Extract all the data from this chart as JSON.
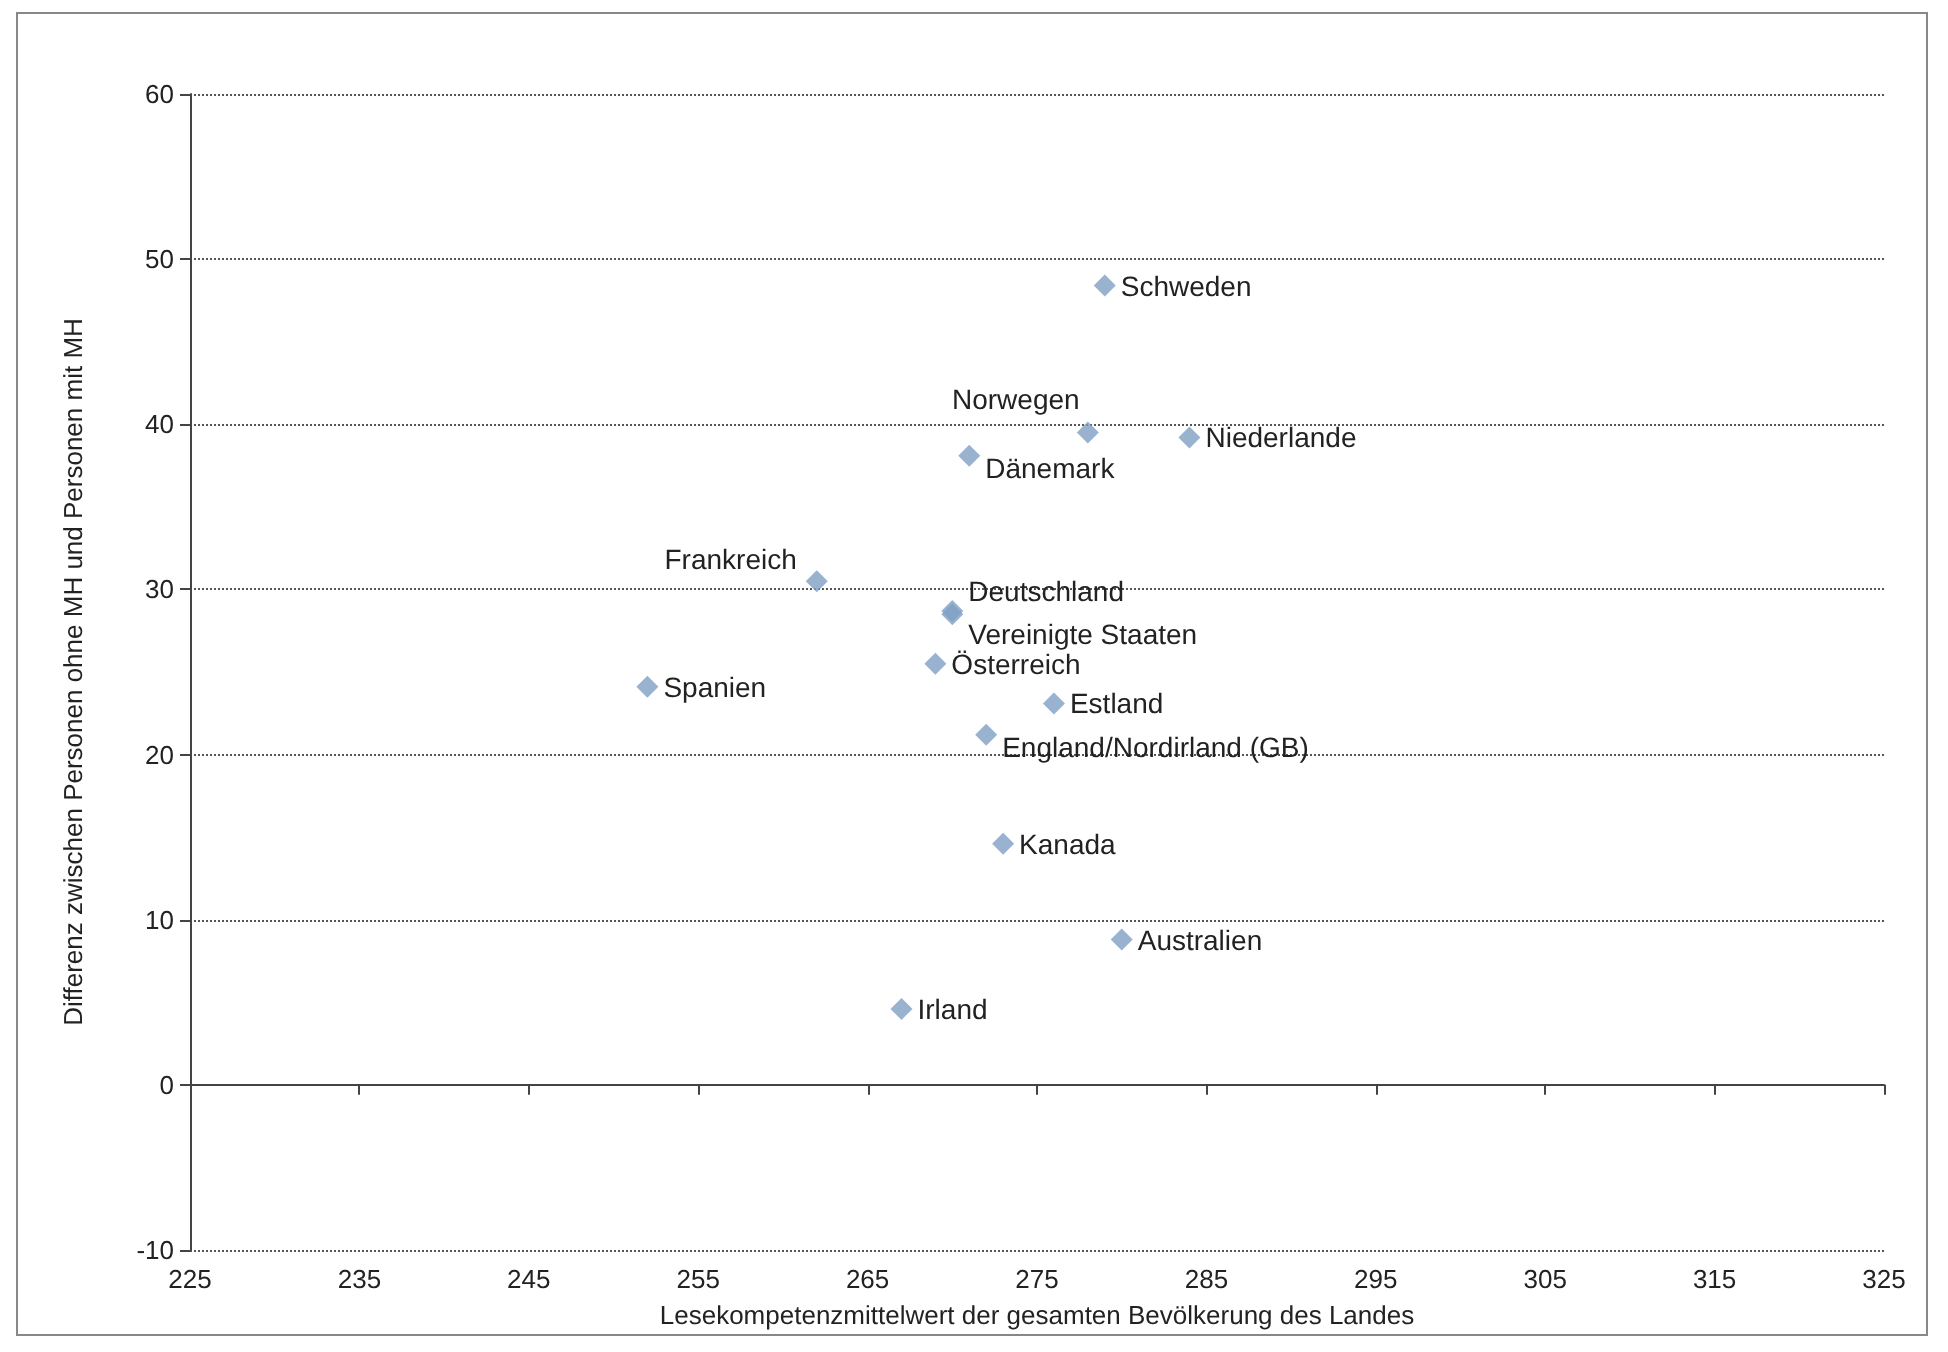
{
  "chart_data": {
    "type": "scatter",
    "xlabel": "Lesekompetenzmittelwert der gesamten Bevölkerung des Landes",
    "ylabel": "Differenz zwischen Personen ohne MH und Personen mit MH",
    "x": [
      279,
      278,
      284,
      271,
      262,
      270,
      270,
      269,
      252,
      276,
      272,
      273,
      280,
      267
    ],
    "series": [
      {
        "color": "#7f9fc3",
        "values": [
          48.4,
          39.5,
          39.2,
          38.1,
          30.5,
          28.7,
          28.5,
          25.5,
          24.1,
          23.1,
          21.2,
          14.6,
          8.8,
          4.6
        ]
      }
    ],
    "annotations": [
      {
        "text": "Schweden",
        "x": 279,
        "y": 48.4
      },
      {
        "text": "Norwegen",
        "x": 278,
        "y": 39.5
      },
      {
        "text": "Niederlande",
        "x": 284,
        "y": 39.2
      },
      {
        "text": "Dänemark",
        "x": 271,
        "y": 38.1
      },
      {
        "text": "Frankreich",
        "x": 262,
        "y": 30.5
      },
      {
        "text": "Deutschland",
        "x": 270,
        "y": 28.7
      },
      {
        "text": "Vereinigte Staaten",
        "x": 270,
        "y": 28.5
      },
      {
        "text": "Österreich",
        "x": 269,
        "y": 25.5
      },
      {
        "text": "Spanien",
        "x": 252,
        "y": 24.1
      },
      {
        "text": "Estland",
        "x": 276,
        "y": 23.1
      },
      {
        "text": "England/Nordirland (GB)",
        "x": 272,
        "y": 21.2
      },
      {
        "text": "Kanada",
        "x": 273,
        "y": 14.6
      },
      {
        "text": "Australien",
        "x": 280,
        "y": 8.8
      },
      {
        "text": "Irland",
        "x": 267,
        "y": 4.6
      }
    ],
    "xlim": [
      225,
      325
    ],
    "xticks": [
      225,
      235,
      245,
      255,
      265,
      275,
      285,
      295,
      305,
      315,
      325
    ],
    "ylim": [
      -10,
      60
    ],
    "yticks": [
      -10,
      0,
      10,
      20,
      30,
      40,
      50,
      60
    ],
    "grid": "y",
    "marker": "diamond"
  }
}
